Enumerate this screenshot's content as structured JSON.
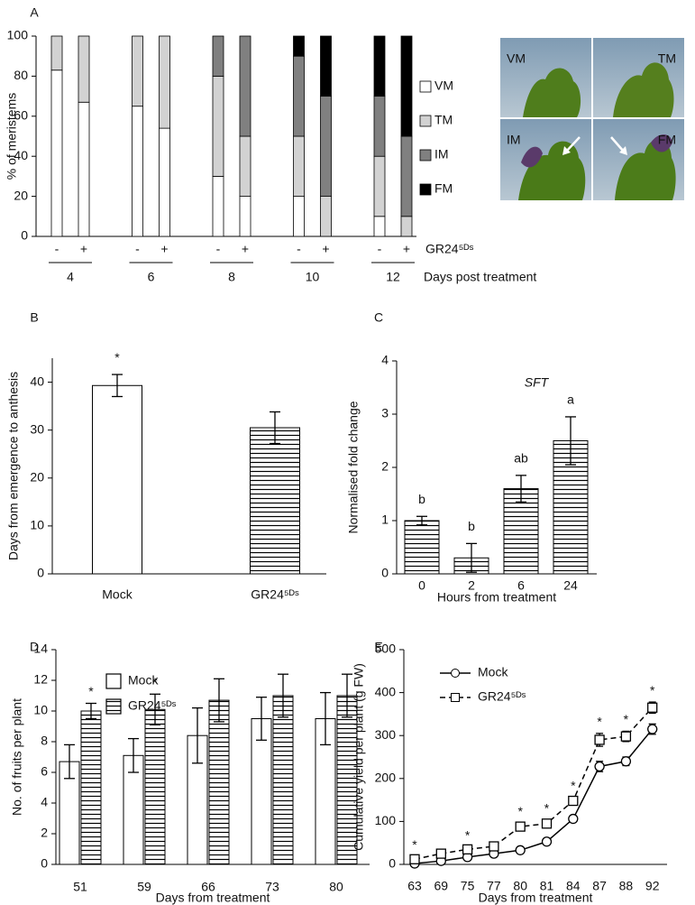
{
  "chart_data": [
    {
      "type": "stacked_bar",
      "panel": "A",
      "ylabel": "% of meristems",
      "categories": [
        "-",
        "+",
        "-",
        "+",
        "-",
        "+",
        "-",
        "+",
        "-",
        "+"
      ],
      "groups": [
        "4",
        "6",
        "8",
        "10",
        "12"
      ],
      "group_title": "Days post treatment",
      "treatment_label": "GR24⁵ᴰˢ",
      "series": [
        {
          "name": "VM",
          "color": "#ffffff",
          "values": [
            83,
            67,
            65,
            54,
            30,
            20,
            20,
            0,
            10,
            0
          ]
        },
        {
          "name": "TM",
          "color": "#d2d2d2",
          "values": [
            17,
            33,
            35,
            46,
            50,
            30,
            30,
            20,
            30,
            10
          ]
        },
        {
          "name": "IM",
          "color": "#808080",
          "values": [
            0,
            0,
            0,
            0,
            20,
            50,
            40,
            50,
            30,
            40
          ]
        },
        {
          "name": "FM",
          "color": "#000000",
          "values": [
            0,
            0,
            0,
            0,
            0,
            0,
            10,
            30,
            30,
            50
          ]
        }
      ],
      "ylim": [
        0,
        100
      ],
      "yticks": [
        0,
        20,
        40,
        60,
        80,
        100
      ],
      "image_labels": [
        "VM",
        "TM",
        "IM",
        "FM"
      ]
    },
    {
      "type": "bar",
      "panel": "B",
      "ylabel": "Days from emergence to anthesis",
      "categories": [
        "Mock",
        "GR24⁵ᴰˢ"
      ],
      "values": [
        39.3,
        30.5
      ],
      "errors": [
        2.3,
        3.3
      ],
      "fills": [
        "plain",
        "striped"
      ],
      "markers": [
        "*",
        null
      ],
      "ylim": [
        0,
        45
      ],
      "yticks": [
        0,
        10,
        20,
        30,
        40
      ]
    },
    {
      "type": "bar",
      "panel": "C",
      "title": "SFT",
      "ylabel": "Normalised fold change",
      "xlabel": "Hours from treatment",
      "categories": [
        "0",
        "2",
        "6",
        "24"
      ],
      "values": [
        1.0,
        0.3,
        1.6,
        2.5
      ],
      "errors": [
        0.08,
        0.27,
        0.25,
        0.45
      ],
      "fills": [
        "striped",
        "striped",
        "striped",
        "striped"
      ],
      "markers": [
        "b",
        "b",
        "ab",
        "a"
      ],
      "ylim": [
        0,
        4
      ],
      "yticks": [
        0,
        1,
        2,
        3,
        4
      ]
    },
    {
      "type": "grouped_bar",
      "panel": "D",
      "ylabel": "No. of fruits per plant",
      "xlabel": "Days from treatment",
      "categories": [
        "51",
        "59",
        "66",
        "73",
        "80"
      ],
      "series": [
        {
          "name": "Mock",
          "fill": "plain",
          "values": [
            6.7,
            7.1,
            8.4,
            9.5,
            9.5
          ],
          "errors": [
            1.1,
            1.1,
            1.8,
            1.4,
            1.7
          ]
        },
        {
          "name": "GR24⁵ᴰˢ",
          "fill": "striped",
          "values": [
            10.0,
            10.1,
            10.7,
            11.0,
            11.0
          ],
          "errors": [
            0.5,
            1.0,
            1.4,
            1.4,
            1.4
          ],
          "markers": [
            "*",
            "*",
            null,
            null,
            null
          ]
        }
      ],
      "ylim": [
        0,
        14
      ],
      "yticks": [
        0,
        2,
        4,
        6,
        8,
        10,
        12,
        14
      ]
    },
    {
      "type": "line",
      "panel": "E",
      "ylabel": "Cumulative yield per plant (g FW)",
      "xlabel": "Days from treatment",
      "categories": [
        "63",
        "69",
        "75",
        "77",
        "80",
        "81",
        "84",
        "87",
        "88",
        "92"
      ],
      "series": [
        {
          "name": "Mock",
          "marker": "circle",
          "dash": "solid",
          "values": [
            2,
            8,
            17,
            25,
            33,
            53,
            106,
            228,
            240,
            315
          ],
          "errors": [
            3,
            3,
            3,
            3,
            3,
            5,
            6,
            12,
            10,
            12
          ]
        },
        {
          "name": "GR24⁵ᴰˢ",
          "marker": "square",
          "dash": "dashed",
          "values": [
            12,
            25,
            35,
            42,
            88,
            95,
            148,
            290,
            298,
            365
          ],
          "errors": [
            6,
            6,
            5,
            5,
            8,
            8,
            8,
            15,
            12,
            13
          ],
          "markers": [
            "*",
            null,
            "*",
            null,
            "*",
            "*",
            "*",
            "*",
            "*",
            "*"
          ]
        }
      ],
      "ylim": [
        0,
        500
      ],
      "yticks": [
        0,
        100,
        200,
        300,
        400,
        500
      ]
    }
  ]
}
